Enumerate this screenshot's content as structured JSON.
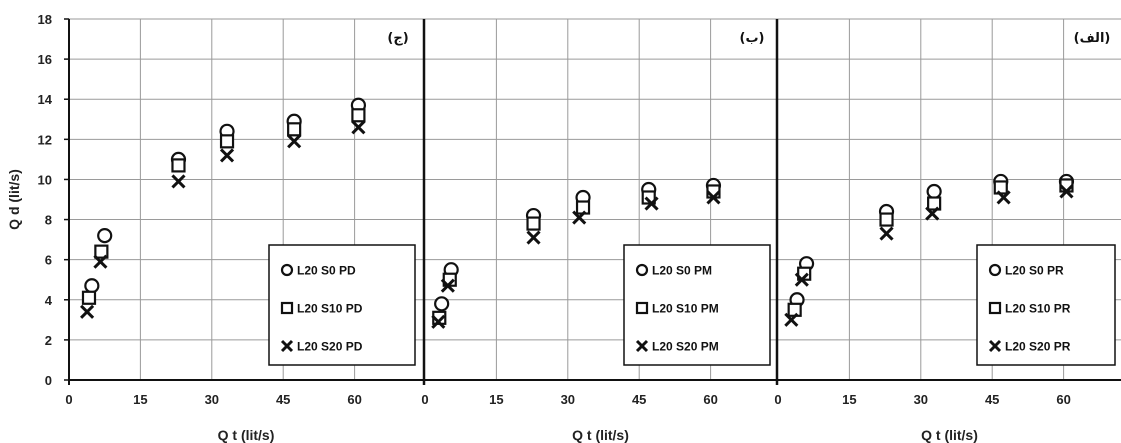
{
  "chart_data": [
    {
      "type": "scatter",
      "panel_tag": "(ج)",
      "xlabel": "Q t (lit/s)",
      "ylabel": "Q d (lit/s)",
      "xlim": [
        0,
        75
      ],
      "ylim": [
        0,
        18
      ],
      "x_ticks": [
        "0",
        "15",
        "30",
        "45",
        "60"
      ],
      "y_ticks": [
        "0",
        "2",
        "4",
        "6",
        "8",
        "10",
        "12",
        "14",
        "16",
        "18"
      ],
      "grid": true,
      "legend_position": "bottom-right",
      "series": [
        {
          "name": "L20 S0 PD",
          "marker": "circle",
          "x": [
            4.8,
            7.5,
            23.0,
            33.2,
            47.3,
            60.8
          ],
          "y": [
            4.7,
            7.2,
            11.0,
            12.4,
            12.9,
            13.7
          ]
        },
        {
          "name": "L20 S10 PD",
          "marker": "square",
          "x": [
            4.2,
            6.8,
            23.0,
            33.2,
            47.3,
            60.8
          ],
          "y": [
            4.1,
            6.4,
            10.7,
            11.9,
            12.5,
            13.2
          ]
        },
        {
          "name": "L20 S20 PD",
          "marker": "cross",
          "x": [
            3.8,
            6.6,
            23.0,
            33.2,
            47.3,
            60.8
          ],
          "y": [
            3.4,
            5.9,
            9.9,
            11.2,
            11.9,
            12.6
          ]
        }
      ]
    },
    {
      "type": "scatter",
      "panel_tag": "(ب)",
      "xlabel": "Q t (lit/s)",
      "ylabel": "",
      "xlim": [
        0,
        75
      ],
      "ylim": [
        0,
        18
      ],
      "x_ticks": [
        "0",
        "15",
        "30",
        "45",
        "60"
      ],
      "y_ticks": [],
      "grid": true,
      "legend_position": "bottom-right",
      "series": [
        {
          "name": "L20 S0 PM",
          "marker": "circle",
          "x": [
            3.5,
            5.5,
            22.8,
            33.2,
            47.0,
            60.6
          ],
          "y": [
            3.8,
            5.5,
            8.2,
            9.1,
            9.5,
            9.7
          ]
        },
        {
          "name": "L20 S10 PM",
          "marker": "square",
          "x": [
            3.0,
            5.2,
            22.8,
            33.2,
            47.0,
            60.6
          ],
          "y": [
            3.1,
            5.0,
            7.8,
            8.6,
            9.1,
            9.4
          ]
        },
        {
          "name": "L20 S20 PM",
          "marker": "cross",
          "x": [
            2.8,
            4.8,
            22.8,
            32.4,
            47.6,
            60.6
          ],
          "y": [
            2.9,
            4.7,
            7.1,
            8.1,
            8.8,
            9.1
          ]
        }
      ]
    },
    {
      "type": "scatter",
      "panel_tag": "(الف)",
      "xlabel": "Q t (lit/s)",
      "ylabel": "",
      "xlim": [
        0,
        75
      ],
      "ylim": [
        0,
        18
      ],
      "x_ticks": [
        "0",
        "15",
        "30",
        "45",
        "60"
      ],
      "y_ticks": [],
      "grid": true,
      "legend_position": "bottom-right",
      "series": [
        {
          "name": "L20 S0 PR",
          "marker": "circle",
          "x": [
            4.0,
            6.0,
            22.8,
            32.8,
            46.8,
            60.6
          ],
          "y": [
            4.0,
            5.8,
            8.4,
            9.4,
            9.9,
            9.9
          ]
        },
        {
          "name": "L20 S10 PR",
          "marker": "square",
          "x": [
            3.5,
            5.5,
            22.8,
            32.8,
            46.8,
            60.6
          ],
          "y": [
            3.5,
            5.3,
            8.0,
            8.8,
            9.6,
            9.7
          ]
        },
        {
          "name": "L20 S20 PR",
          "marker": "cross",
          "x": [
            2.8,
            5.0,
            22.8,
            32.4,
            47.4,
            60.6
          ],
          "y": [
            3.0,
            5.0,
            7.3,
            8.3,
            9.1,
            9.4
          ]
        }
      ]
    }
  ]
}
